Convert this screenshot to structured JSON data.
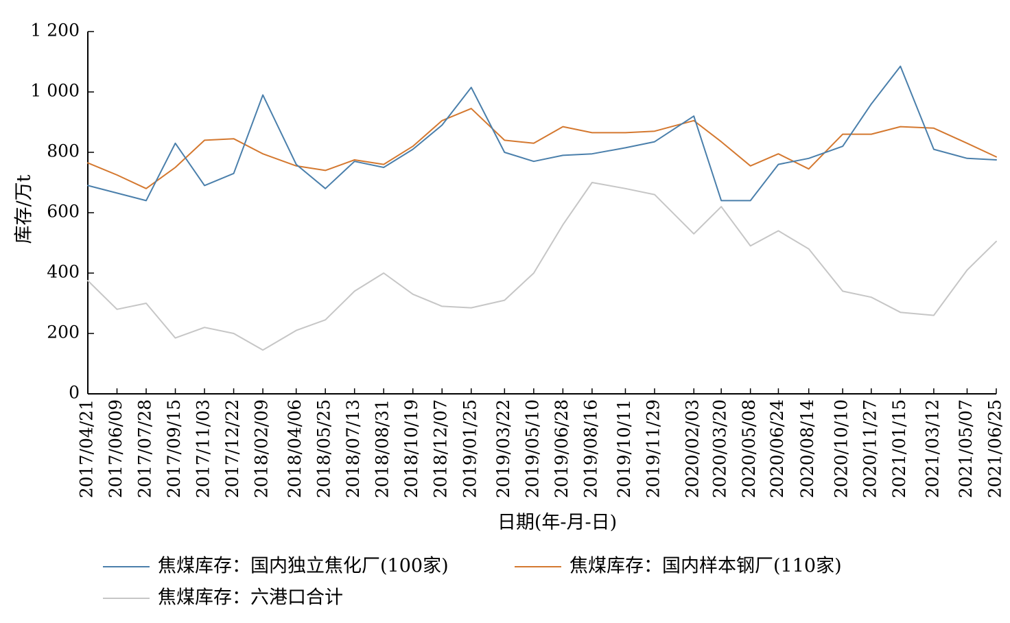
{
  "chart_data": {
    "type": "line",
    "xlabel": "日期(年-月-日)",
    "ylabel": "库存/万t",
    "ylim": [
      0,
      1200
    ],
    "yticks": [
      0,
      200,
      400,
      600,
      800,
      1000,
      1200
    ],
    "ytick_labels": [
      "0",
      "200",
      "400",
      "600",
      "800",
      "1 000",
      "1 200"
    ],
    "x_tick_labels": [
      "2017/04/21",
      "2017/06/09",
      "2017/07/28",
      "2017/09/15",
      "2017/11/03",
      "2017/12/22",
      "2018/02/09",
      "2018/04/06",
      "2018/05/25",
      "2018/07/13",
      "2018/08/31",
      "2018/10/19",
      "2018/12/07",
      "2019/01/25",
      "2019/03/22",
      "2019/05/10",
      "2019/06/28",
      "2019/08/16",
      "2019/10/11",
      "2019/11/29",
      "2020/02/03",
      "2020/03/20",
      "2020/05/08",
      "2020/06/24",
      "2020/08/14",
      "2020/10/10",
      "2020/11/27",
      "2021/01/15",
      "2021/03/12",
      "2021/05/07",
      "2021/06/25"
    ],
    "x": [
      "2017/04/21",
      "2017/06/09",
      "2017/07/28",
      "2017/09/15",
      "2017/11/03",
      "2017/12/22",
      "2018/02/09",
      "2018/04/06",
      "2018/05/25",
      "2018/07/13",
      "2018/08/31",
      "2018/10/19",
      "2018/12/07",
      "2019/01/25",
      "2019/03/22",
      "2019/05/10",
      "2019/06/28",
      "2019/08/16",
      "2019/10/11",
      "2019/11/29",
      "2020/02/03",
      "2020/03/20",
      "2020/05/08",
      "2020/06/24",
      "2020/08/14",
      "2020/10/10",
      "2020/11/27",
      "2021/01/15",
      "2021/03/12",
      "2021/05/07",
      "2021/06/25"
    ],
    "grid": false,
    "legend_position": "bottom",
    "series": [
      {
        "name": "焦煤库存：国内独立焦化厂(100家)",
        "color": "#4a7fab",
        "values": [
          690,
          665,
          640,
          830,
          690,
          730,
          990,
          760,
          680,
          770,
          750,
          810,
          890,
          1015,
          800,
          770,
          790,
          795,
          815,
          835,
          920,
          640,
          640,
          760,
          780,
          820,
          960,
          1085,
          810,
          780,
          775
        ]
      },
      {
        "name": "焦煤库存：国内样本钢厂(110家)",
        "color": "#d4782f",
        "values": [
          765,
          725,
          680,
          750,
          840,
          845,
          795,
          755,
          740,
          775,
          760,
          820,
          905,
          945,
          840,
          830,
          885,
          865,
          865,
          870,
          905,
          835,
          755,
          795,
          745,
          860,
          860,
          885,
          880,
          830,
          785
        ]
      },
      {
        "name": "焦煤库存：六港口合计",
        "color": "#c6c6c6",
        "values": [
          375,
          280,
          300,
          185,
          220,
          200,
          145,
          210,
          245,
          340,
          400,
          330,
          290,
          285,
          310,
          400,
          560,
          700,
          680,
          660,
          530,
          620,
          490,
          540,
          480,
          340,
          320,
          270,
          260,
          410,
          505
        ]
      }
    ]
  }
}
